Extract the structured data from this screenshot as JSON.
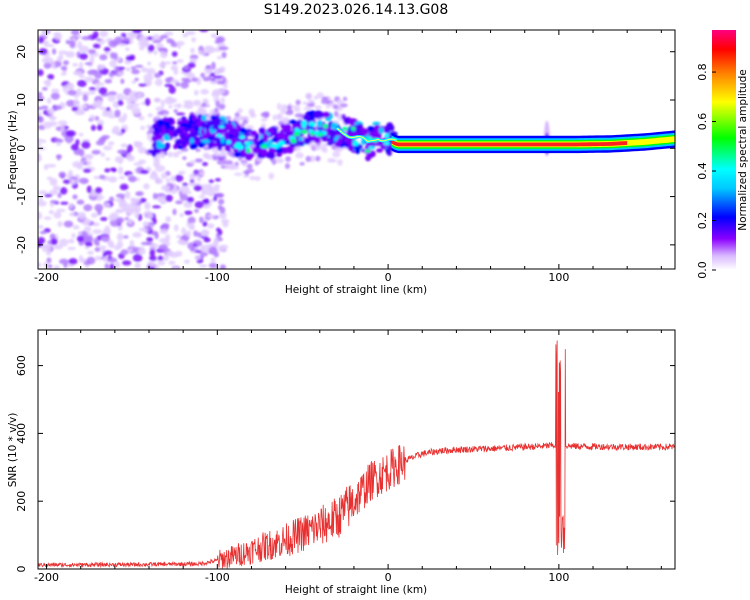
{
  "chart_data": [
    {
      "type": "heatmap",
      "title": "S149.2023.026.14.13.G08",
      "xlabel": "Height of straight line (km)",
      "ylabel": "Frequency (Hz)",
      "xlim": [
        -205,
        168
      ],
      "ylim": [
        -25,
        24.5
      ],
      "xticks": [
        -200,
        -100,
        0,
        100
      ],
      "yticks": [
        -20,
        -10,
        0,
        10,
        20
      ],
      "colorbar": {
        "label": "Normalized spectral amplitude",
        "range": [
          0,
          0.97
        ],
        "ticks": [
          0.0,
          0.2,
          0.4,
          0.6,
          0.8
        ],
        "colors": [
          "#ffffff",
          "#d9b8ff",
          "#8a00ff",
          "#0000ff",
          "#00ffff",
          "#00ff00",
          "#ffff00",
          "#ff8000",
          "#ff0000",
          "#ff0080"
        ]
      },
      "frequency_track": {
        "description_free_points": [
          [
            -135,
            2.6
          ],
          [
            -120,
            3.2
          ],
          [
            -105,
            3.6
          ],
          [
            -95,
            3.0
          ],
          [
            -85,
            1.0
          ],
          [
            -75,
            0.6
          ],
          [
            -65,
            1.5
          ],
          [
            -55,
            3.0
          ],
          [
            -45,
            4.5
          ],
          [
            -35,
            4.0
          ],
          [
            -25,
            3.5
          ],
          [
            -18,
            2.2
          ],
          [
            -12,
            0.8
          ],
          [
            -6,
            2.6
          ],
          [
            0,
            1.8
          ],
          [
            5,
            0.8
          ],
          [
            20,
            0.8
          ],
          [
            60,
            0.8
          ],
          [
            90,
            0.8
          ],
          [
            95,
            0.8
          ],
          [
            110,
            0.8
          ],
          [
            130,
            0.9
          ],
          [
            150,
            1.3
          ],
          [
            168,
            1.9
          ]
        ],
        "spike_x": 93
      }
    },
    {
      "type": "line",
      "xlabel": "Height of straight line (km)",
      "ylabel": "SNR (10 * v/v)",
      "xlim": [
        -205,
        168
      ],
      "ylim": [
        0,
        705
      ],
      "xticks": [
        -200,
        -100,
        0,
        100
      ],
      "yticks": [
        0,
        200,
        400,
        600
      ],
      "color": "#e83030",
      "mean_profile": [
        [
          -205,
          12
        ],
        [
          -150,
          13
        ],
        [
          -110,
          15
        ],
        [
          -100,
          25
        ],
        [
          -90,
          38
        ],
        [
          -80,
          55
        ],
        [
          -70,
          70
        ],
        [
          -60,
          85
        ],
        [
          -50,
          105
        ],
        [
          -40,
          125
        ],
        [
          -30,
          150
        ],
        [
          -20,
          200
        ],
        [
          -10,
          260
        ],
        [
          0,
          290
        ],
        [
          10,
          320
        ],
        [
          20,
          340
        ],
        [
          30,
          348
        ],
        [
          40,
          352
        ],
        [
          60,
          355
        ],
        [
          80,
          360
        ],
        [
          90,
          362
        ],
        [
          98,
          365
        ],
        [
          110,
          362
        ],
        [
          140,
          360
        ],
        [
          168,
          360
        ]
      ],
      "spike": {
        "x": 101,
        "min": 40,
        "max": 700
      }
    }
  ]
}
